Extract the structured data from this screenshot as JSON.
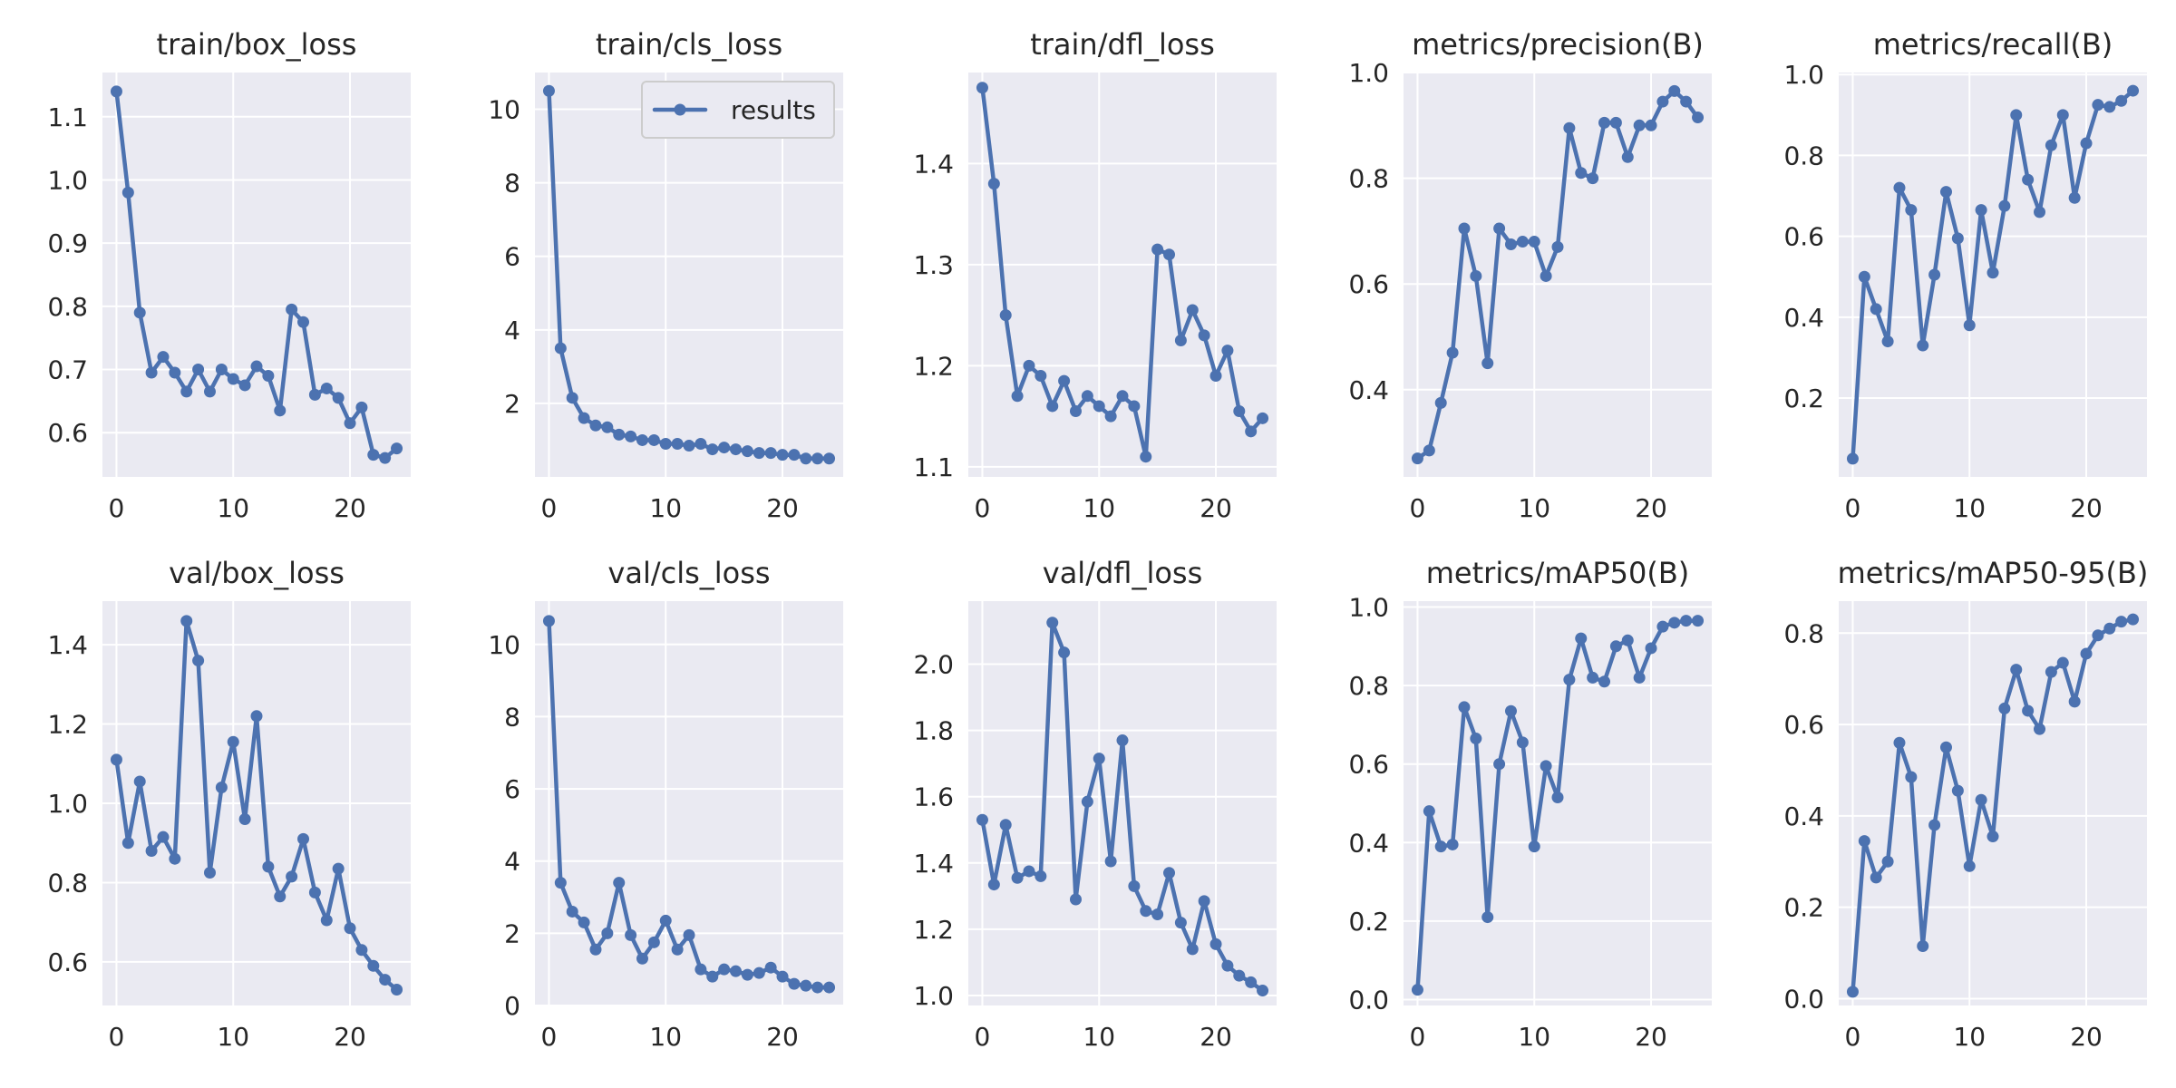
{
  "chart_data": [
    {
      "type": "line",
      "title": "train/box_loss",
      "series_name": "results",
      "x": [
        0,
        1,
        2,
        3,
        4,
        5,
        6,
        7,
        8,
        9,
        10,
        11,
        12,
        13,
        14,
        15,
        16,
        17,
        18,
        19,
        20,
        21,
        22,
        23,
        24
      ],
      "values": [
        1.14,
        0.98,
        0.79,
        0.695,
        0.72,
        0.695,
        0.665,
        0.7,
        0.665,
        0.7,
        0.685,
        0.675,
        0.705,
        0.69,
        0.635,
        0.795,
        0.775,
        0.66,
        0.67,
        0.655,
        0.615,
        0.64,
        0.565,
        0.56,
        0.575
      ],
      "xticks": [
        0,
        10,
        20
      ],
      "yticks": [
        0.6,
        0.7,
        0.8,
        0.9,
        1.0,
        1.1
      ],
      "ytick_labels": [
        "0.6",
        "0.7",
        "0.8",
        "0.9",
        "1.0",
        "1.1"
      ],
      "xlim": [
        -1.2,
        25.2
      ],
      "ylim": [
        0.53,
        1.17
      ]
    },
    {
      "type": "line",
      "title": "train/cls_loss",
      "series_name": "results",
      "x": [
        0,
        1,
        2,
        3,
        4,
        5,
        6,
        7,
        8,
        9,
        10,
        11,
        12,
        13,
        14,
        15,
        16,
        17,
        18,
        19,
        20,
        21,
        22,
        23,
        24
      ],
      "values": [
        10.5,
        3.5,
        2.15,
        1.6,
        1.4,
        1.35,
        1.15,
        1.1,
        1.0,
        1.0,
        0.9,
        0.9,
        0.85,
        0.9,
        0.75,
        0.8,
        0.75,
        0.7,
        0.65,
        0.65,
        0.6,
        0.6,
        0.5,
        0.5,
        0.5
      ],
      "xticks": [
        0,
        10,
        20
      ],
      "yticks": [
        2,
        4,
        6,
        8,
        10
      ],
      "ytick_labels": [
        "2",
        "4",
        "6",
        "8",
        "10"
      ],
      "xlim": [
        -1.2,
        25.2
      ],
      "ylim": [
        0.0,
        11.0
      ],
      "legend": {
        "label": "results",
        "position": "upper right"
      }
    },
    {
      "type": "line",
      "title": "train/dfl_loss",
      "series_name": "results",
      "x": [
        0,
        1,
        2,
        3,
        4,
        5,
        6,
        7,
        8,
        9,
        10,
        11,
        12,
        13,
        14,
        15,
        16,
        17,
        18,
        19,
        20,
        21,
        22,
        23,
        24
      ],
      "values": [
        1.475,
        1.38,
        1.25,
        1.17,
        1.2,
        1.19,
        1.16,
        1.185,
        1.155,
        1.17,
        1.16,
        1.15,
        1.17,
        1.16,
        1.11,
        1.315,
        1.31,
        1.225,
        1.255,
        1.23,
        1.19,
        1.215,
        1.155,
        1.135,
        1.148
      ],
      "xticks": [
        0,
        10,
        20
      ],
      "yticks": [
        1.1,
        1.2,
        1.3,
        1.4
      ],
      "ytick_labels": [
        "1.1",
        "1.2",
        "1.3",
        "1.4"
      ],
      "xlim": [
        -1.2,
        25.2
      ],
      "ylim": [
        1.09,
        1.49
      ]
    },
    {
      "type": "line",
      "title": "metrics/precision(B)",
      "series_name": "results",
      "x": [
        0,
        1,
        2,
        3,
        4,
        5,
        6,
        7,
        8,
        9,
        10,
        11,
        12,
        13,
        14,
        15,
        16,
        17,
        18,
        19,
        20,
        21,
        22,
        23,
        24
      ],
      "values": [
        0.27,
        0.285,
        0.375,
        0.47,
        0.705,
        0.615,
        0.45,
        0.705,
        0.675,
        0.68,
        0.68,
        0.615,
        0.67,
        0.895,
        0.81,
        0.8,
        0.905,
        0.905,
        0.84,
        0.9,
        0.9,
        0.945,
        0.965,
        0.945,
        0.915
      ],
      "xticks": [
        0,
        10,
        20
      ],
      "yticks": [
        0.4,
        0.6,
        0.8,
        1.0
      ],
      "ytick_labels": [
        "0.4",
        "0.6",
        "0.8",
        "1.0"
      ],
      "xlim": [
        -1.2,
        25.2
      ],
      "ylim": [
        0.235,
        1.0
      ]
    },
    {
      "type": "line",
      "title": "metrics/recall(B)",
      "series_name": "results",
      "x": [
        0,
        1,
        2,
        3,
        4,
        5,
        6,
        7,
        8,
        9,
        10,
        11,
        12,
        13,
        14,
        15,
        16,
        17,
        18,
        19,
        20,
        21,
        22,
        23,
        24
      ],
      "values": [
        0.05,
        0.5,
        0.42,
        0.34,
        0.72,
        0.665,
        0.33,
        0.505,
        0.71,
        0.595,
        0.38,
        0.665,
        0.51,
        0.675,
        0.9,
        0.74,
        0.66,
        0.825,
        0.9,
        0.695,
        0.83,
        0.925,
        0.92,
        0.935,
        0.96
      ],
      "xticks": [
        0,
        10,
        20
      ],
      "yticks": [
        0.2,
        0.4,
        0.6,
        0.8,
        1.0
      ],
      "ytick_labels": [
        "0.2",
        "0.4",
        "0.6",
        "0.8",
        "1.0"
      ],
      "xlim": [
        -1.2,
        25.2
      ],
      "ylim": [
        0.005,
        1.005
      ]
    },
    {
      "type": "line",
      "title": "val/box_loss",
      "series_name": "results",
      "x": [
        0,
        1,
        2,
        3,
        4,
        5,
        6,
        7,
        8,
        9,
        10,
        11,
        12,
        13,
        14,
        15,
        16,
        17,
        18,
        19,
        20,
        21,
        22,
        23,
        24
      ],
      "values": [
        1.11,
        0.9,
        1.055,
        0.88,
        0.915,
        0.86,
        1.46,
        1.36,
        0.825,
        1.04,
        1.155,
        0.96,
        1.22,
        0.84,
        0.765,
        0.815,
        0.91,
        0.775,
        0.705,
        0.835,
        0.685,
        0.63,
        0.59,
        0.555,
        0.53
      ],
      "xticks": [
        0,
        10,
        20
      ],
      "yticks": [
        0.6,
        0.8,
        1.0,
        1.2,
        1.4
      ],
      "ytick_labels": [
        "0.6",
        "0.8",
        "1.0",
        "1.2",
        "1.4"
      ],
      "xlim": [
        -1.2,
        25.2
      ],
      "ylim": [
        0.49,
        1.51
      ]
    },
    {
      "type": "line",
      "title": "val/cls_loss",
      "series_name": "results",
      "x": [
        0,
        1,
        2,
        3,
        4,
        5,
        6,
        7,
        8,
        9,
        10,
        11,
        12,
        13,
        14,
        15,
        16,
        17,
        18,
        19,
        20,
        21,
        22,
        23,
        24
      ],
      "values": [
        10.65,
        3.4,
        2.6,
        2.3,
        1.55,
        2.0,
        3.4,
        1.95,
        1.3,
        1.75,
        2.35,
        1.55,
        1.95,
        1.0,
        0.8,
        1.0,
        0.95,
        0.85,
        0.9,
        1.05,
        0.8,
        0.6,
        0.55,
        0.5,
        0.5
      ],
      "xticks": [
        0,
        10,
        20
      ],
      "yticks": [
        0,
        2,
        4,
        6,
        8,
        10
      ],
      "ytick_labels": [
        "0",
        "2",
        "4",
        "6",
        "8",
        "10"
      ],
      "xlim": [
        -1.2,
        25.2
      ],
      "ylim": [
        0.0,
        11.2
      ]
    },
    {
      "type": "line",
      "title": "val/dfl_loss",
      "series_name": "results",
      "x": [
        0,
        1,
        2,
        3,
        4,
        5,
        6,
        7,
        8,
        9,
        10,
        11,
        12,
        13,
        14,
        15,
        16,
        17,
        18,
        19,
        20,
        21,
        22,
        23,
        24
      ],
      "values": [
        1.53,
        1.335,
        1.515,
        1.355,
        1.375,
        1.36,
        2.125,
        2.035,
        1.29,
        1.585,
        1.715,
        1.405,
        1.77,
        1.33,
        1.255,
        1.245,
        1.37,
        1.22,
        1.14,
        1.285,
        1.155,
        1.09,
        1.06,
        1.04,
        1.015
      ],
      "xticks": [
        0,
        10,
        20
      ],
      "yticks": [
        1.0,
        1.2,
        1.4,
        1.6,
        1.8,
        2.0
      ],
      "ytick_labels": [
        "1.0",
        "1.2",
        "1.4",
        "1.6",
        "1.8",
        "2.0"
      ],
      "xlim": [
        -1.2,
        25.2
      ],
      "ylim": [
        0.97,
        2.19
      ]
    },
    {
      "type": "line",
      "title": "metrics/mAP50(B)",
      "series_name": "results",
      "x": [
        0,
        1,
        2,
        3,
        4,
        5,
        6,
        7,
        8,
        9,
        10,
        11,
        12,
        13,
        14,
        15,
        16,
        17,
        18,
        19,
        20,
        21,
        22,
        23,
        24
      ],
      "values": [
        0.025,
        0.48,
        0.39,
        0.395,
        0.745,
        0.665,
        0.21,
        0.6,
        0.735,
        0.655,
        0.39,
        0.595,
        0.515,
        0.815,
        0.92,
        0.82,
        0.81,
        0.9,
        0.915,
        0.82,
        0.895,
        0.95,
        0.96,
        0.965,
        0.965
      ],
      "xticks": [
        0,
        10,
        20
      ],
      "yticks": [
        0.0,
        0.2,
        0.4,
        0.6,
        0.8,
        1.0
      ],
      "ytick_labels": [
        "0.0",
        "0.2",
        "0.4",
        "0.6",
        "0.8",
        "1.0"
      ],
      "xlim": [
        -1.2,
        25.2
      ],
      "ylim": [
        -0.015,
        1.015
      ]
    },
    {
      "type": "line",
      "title": "metrics/mAP50-95(B)",
      "series_name": "results",
      "x": [
        0,
        1,
        2,
        3,
        4,
        5,
        6,
        7,
        8,
        9,
        10,
        11,
        12,
        13,
        14,
        15,
        16,
        17,
        18,
        19,
        20,
        21,
        22,
        23,
        24
      ],
      "values": [
        0.015,
        0.345,
        0.265,
        0.3,
        0.56,
        0.485,
        0.115,
        0.38,
        0.55,
        0.455,
        0.29,
        0.435,
        0.355,
        0.635,
        0.72,
        0.63,
        0.59,
        0.715,
        0.735,
        0.65,
        0.755,
        0.795,
        0.81,
        0.825,
        0.83
      ],
      "xticks": [
        0,
        10,
        20
      ],
      "yticks": [
        0.0,
        0.2,
        0.4,
        0.6,
        0.8
      ],
      "ytick_labels": [
        "0.0",
        "0.2",
        "0.4",
        "0.6",
        "0.8"
      ],
      "xlim": [
        -1.2,
        25.2
      ],
      "ylim": [
        -0.015,
        0.87
      ]
    }
  ],
  "colors": {
    "series": "#4c72b0",
    "panel_background": "#eaeaf2",
    "grid": "#ffffff",
    "text": "#262626",
    "legend_border": "#cccccc"
  }
}
